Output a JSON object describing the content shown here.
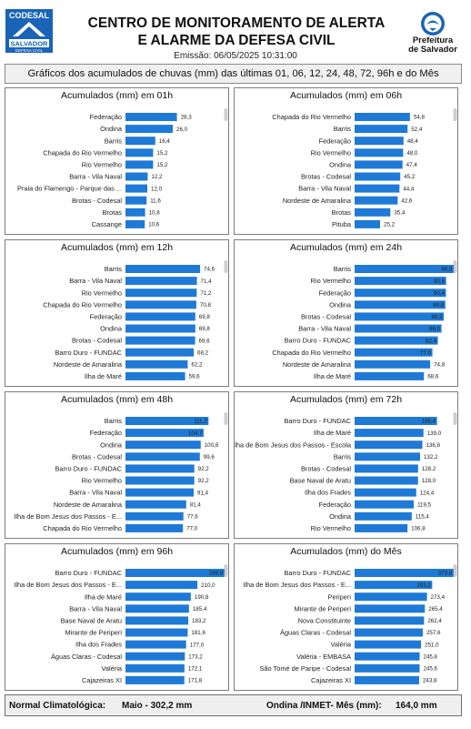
{
  "header": {
    "codesal_logo_text": "CODESAL",
    "codesal_logo_sub": "SALVADOR",
    "codesal_logo_tag": "DEFESA CIVIL",
    "title_line1": "CENTRO DE MONITORAMENTO DE ALERTA",
    "title_line2": "E ALARME DA DEFESA CIVIL",
    "emission": "Emissão: 06/05/2025 10:31:00",
    "prefeitura_line1": "Prefeitura",
    "prefeitura_line2": "de Salvador"
  },
  "subtitle": "Gráficos dos acumulados de chuvas (mm) das últimas 01, 06, 12, 24, 48, 72, 96h e do Mês",
  "colors": {
    "bar": "#1e7ad6",
    "panel_border": "#7d7d7d",
    "footer_bg": "#efefef"
  },
  "chart_data": [
    {
      "type": "bar",
      "orientation": "horizontal",
      "title": "Acumulados (mm) em 01h",
      "categories": [
        "Federação",
        "Ondina",
        "Barris",
        "Chapada do Rio Vermelho",
        "Rio Vermelho",
        "Barra - Vila Naval",
        "Praia do Flamengo - Parque das ...",
        "Brotas - Codesal",
        "Brotas",
        "Cassange"
      ],
      "values": [
        28.3,
        26.0,
        16.4,
        15.2,
        15.2,
        12.2,
        12.0,
        11.6,
        10.8,
        10.6
      ],
      "labels": [
        "28,3",
        "26,0",
        "16,4",
        "15,2",
        "15,2",
        "12,2",
        "12,0",
        "11,6",
        "10,8",
        "10,6"
      ],
      "xlim": [
        0,
        55
      ]
    },
    {
      "type": "bar",
      "orientation": "horizontal",
      "title": "Acumulados (mm) em 06h",
      "categories": [
        "Chapada do Rio Vermelho",
        "Barris",
        "Federação",
        "Rio Vermelho",
        "Ondina",
        "Brotas - Codesal",
        "Barra - Vila Naval",
        "Nordeste de Amaralina",
        "Brotas",
        "Pituba"
      ],
      "values": [
        54.8,
        52.4,
        48.4,
        48.0,
        47.4,
        45.2,
        44.4,
        42.6,
        35.4,
        25.2
      ],
      "labels": [
        "54,8",
        "52,4",
        "48,4",
        "48,0",
        "47,4",
        "45,2",
        "44,4",
        "42,6",
        "35,4",
        "25,2"
      ],
      "xlim": [
        0,
        99
      ]
    },
    {
      "type": "bar",
      "orientation": "horizontal",
      "title": "Acumulados (mm) em 12h",
      "categories": [
        "Barris",
        "Barra - Vila Naval",
        "Rio Vermelho",
        "Chapada do Rio Vermelho",
        "Federação",
        "Ondina",
        "Brotas - Codesal",
        "Barro Duro - FUNDAC",
        "Nordeste de Amaralina",
        "Ilha de Maré"
      ],
      "values": [
        74.6,
        71.4,
        71.2,
        70.8,
        69.8,
        69.8,
        69.6,
        68.2,
        62.2,
        59.6
      ],
      "labels": [
        "74,6",
        "71,4",
        "71,2",
        "70,8",
        "69,8",
        "69,8",
        "69,6",
        "68,2",
        "62,2",
        "59,6"
      ],
      "xlim": [
        0,
        100
      ]
    },
    {
      "type": "bar",
      "orientation": "horizontal",
      "title": "Acumulados (mm) em 24h",
      "categories": [
        "Barris",
        "Rio Vermelho",
        "Federação",
        "Ondina",
        "Brotas - Codesal",
        "Barra - Vila Naval",
        "Barro Duro - FUNDAC",
        "Chapada do Rio Vermelho",
        "Nordeste de Amaralina",
        "Ilha de Maré"
      ],
      "values": [
        98.0,
        90.6,
        90.4,
        89.8,
        88.2,
        86.0,
        82.4,
        77.0,
        74.8,
        68.6
      ],
      "labels": [
        "98,0",
        "90,6",
        "90,4",
        "89,8",
        "88,2",
        "86,0",
        "82,4",
        "77,0",
        "74,8",
        "68,6"
      ],
      "xlim": [
        0,
        99
      ]
    },
    {
      "type": "bar",
      "orientation": "horizontal",
      "title": "Acumulados (mm) em 48h",
      "categories": [
        "Barris",
        "Federação",
        "Ondina",
        "Brotas - Codesal",
        "Barro Duro - FUNDAC",
        "Rio Vermelho",
        "Barra - Vila Naval",
        "Nordeste de Amaralina",
        "Ilha de Bom Jesus dos Passos - E...",
        "Chapada do Rio Vermelho"
      ],
      "values": [
        111.2,
        104.7,
        100.8,
        99.6,
        92.2,
        92.2,
        91.4,
        81.4,
        77.6,
        77.0
      ],
      "labels": [
        "111,2",
        "104,7",
        "100,8",
        "99,6",
        "92,2",
        "92,2",
        "91,4",
        "81,4",
        "77,6",
        "77,0"
      ],
      "xlim": [
        0,
        134
      ]
    },
    {
      "type": "bar",
      "orientation": "horizontal",
      "title": "Acumulados (mm) em 72h",
      "categories": [
        "Barro Duro - FUNDAC",
        "Ilha de Maré",
        "Ilha de Bom Jesus dos Passos - Escola",
        "Barris",
        "Brotas - Codesal",
        "Base Naval de Aratu",
        "Ilha dos Frades",
        "Federação",
        "Ondina",
        "Rio Vermelho"
      ],
      "values": [
        166.4,
        139.0,
        136.8,
        132.2,
        128.2,
        128.0,
        124.4,
        119.5,
        115.4,
        106.8
      ],
      "labels": [
        "166,4",
        "139,0",
        "136,8",
        "132,2",
        "128,2",
        "128,0",
        "124,4",
        "119,5",
        "115,4",
        "106,8"
      ],
      "xlim": [
        0,
        202
      ]
    },
    {
      "type": "bar",
      "orientation": "horizontal",
      "title": "Acumulados (mm) em 96h",
      "categories": [
        "Barro Duro - FUNDAC",
        "Ilha de Bom Jesus dos Passos - E...",
        "Ilha de Maré",
        "Barra - Vila Naval",
        "Base Naval de Aratu",
        "Mirante de Periperi",
        "Ilha dos Frades",
        "Águas Claras - Codesal",
        "Valéria",
        "Cajazeiras XI"
      ],
      "values": [
        288.8,
        210.0,
        190.8,
        185.4,
        183.2,
        181.6,
        177.0,
        173.2,
        172.1,
        171.8
      ],
      "labels": [
        "288,8",
        "210,0",
        "190,8",
        "185,4",
        "183,2",
        "181,6",
        "177,0",
        "173,2",
        "172,1",
        "171,8"
      ],
      "xlim": [
        0,
        292
      ]
    },
    {
      "type": "bar",
      "orientation": "horizontal",
      "title": "Acumulados (mm) do Mês",
      "categories": [
        "Barro Duro - FUNDAC",
        "Ilha de Bom Jesus dos Passos - E...",
        "Periperi",
        "Mirante de Periperi",
        "Nova Constituinte",
        "Águas Claras - Codesal",
        "Valéria",
        "Valéria - EMBASA",
        "São Tomé de Paripe - Codesal",
        "Cajazeiras XI"
      ],
      "values": [
        373.8,
        293.2,
        273.4,
        265.4,
        262.4,
        257.6,
        251.0,
        245.8,
        245.6,
        243.8
      ],
      "labels": [
        "373,8",
        "293,2",
        "273,4",
        "265,4",
        "262,4",
        "257,6",
        "251,0",
        "245,8",
        "245,6",
        "243,8"
      ],
      "xlim": [
        0,
        378
      ]
    }
  ],
  "footer": {
    "normal_label": "Normal Climatológica:",
    "normal_value": "Maio - 302,2 mm",
    "inmet_label": "Ondina /INMET- Mês (mm):",
    "inmet_value": "164,0 mm"
  }
}
